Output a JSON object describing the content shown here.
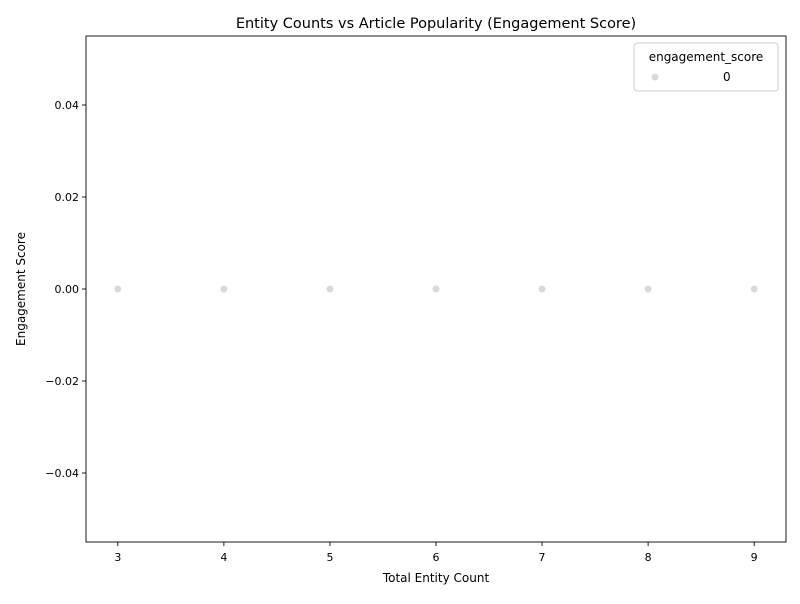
{
  "chart_data": {
    "type": "scatter",
    "title": "Entity Counts vs Article Popularity (Engagement Score)",
    "xlabel": "Total Entity Count",
    "ylabel": "Engagement Score",
    "xlim": [
      2.7,
      9.3
    ],
    "ylim": [
      -0.055,
      0.055
    ],
    "x_ticks": [
      3,
      4,
      5,
      6,
      7,
      8,
      9
    ],
    "x_tick_labels": [
      "3",
      "4",
      "5",
      "6",
      "7",
      "8",
      "9"
    ],
    "y_ticks": [
      -0.04,
      -0.02,
      0.0,
      0.02,
      0.04
    ],
    "y_tick_labels": [
      "−0.04",
      "−0.02",
      "0.00",
      "0.02",
      "0.04"
    ],
    "grid": false,
    "legend": {
      "title": "engagement_score",
      "placement": "top-right",
      "entries": [
        {
          "label": "0",
          "color": "#d9d9d9"
        }
      ]
    },
    "series": [
      {
        "color": "#d9d9d9",
        "points": [
          {
            "x": 3,
            "y": 0
          },
          {
            "x": 4,
            "y": 0
          },
          {
            "x": 5,
            "y": 0
          },
          {
            "x": 6,
            "y": 0
          },
          {
            "x": 7,
            "y": 0
          },
          {
            "x": 8,
            "y": 0
          },
          {
            "x": 9,
            "y": 0
          }
        ]
      }
    ]
  }
}
